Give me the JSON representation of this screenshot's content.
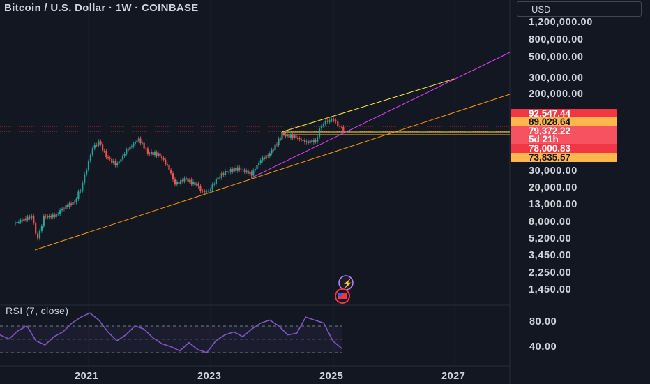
{
  "header": {
    "title": "Bitcoin / U.S. Dollar · 1W · COINBASE",
    "currency": "USD"
  },
  "price_axis": {
    "labels": [
      "1,200,000.00",
      "800,000.00",
      "500,000.00",
      "300,000.00",
      "200,000.00",
      "30,000.00",
      "20,000.00",
      "13,000.00",
      "8,000.00",
      "5,200.00",
      "3,450.00",
      "2,250.00",
      "1,450.00"
    ]
  },
  "price_tags": [
    {
      "text": "92,547.44",
      "bg": "#f23645",
      "fg": "#ffffff"
    },
    {
      "text": "89,028.64",
      "bg": "#ffb74d",
      "fg": "#131722"
    },
    {
      "text": "79,372.22",
      "bg": "#f7525f",
      "fg": "#ffffff"
    },
    {
      "text": "5d 21h",
      "bg": "#f7525f",
      "fg": "#ffffff"
    },
    {
      "text": "78,000.83",
      "bg": "#f23645",
      "fg": "#ffffff"
    },
    {
      "text": "73,835.57",
      "bg": "#ffb74d",
      "fg": "#131722"
    }
  ],
  "rsi": {
    "label": "RSI (7, close)",
    "axis": [
      "80.00",
      "40.00"
    ]
  },
  "time_axis": [
    "2021",
    "2023",
    "2025",
    "2027"
  ],
  "colors": {
    "up": "#26a69a",
    "down": "#ef5350",
    "trend_yellow": "#ffeb3b",
    "trend_orange": "#ff9800",
    "trend_magenta": "#e040fb",
    "rsi": "#7e57c2"
  },
  "chart_data": {
    "type": "candlestick",
    "scale": "log",
    "series": [
      {
        "name": "BTCUSD",
        "points": [
          [
            2019.8,
            7500
          ],
          [
            2020.0,
            8500
          ],
          [
            2020.1,
            9000
          ],
          [
            2020.2,
            5000
          ],
          [
            2020.3,
            8800
          ],
          [
            2020.5,
            9200
          ],
          [
            2020.6,
            11000
          ],
          [
            2020.8,
            13000
          ],
          [
            2020.9,
            18000
          ],
          [
            2021.0,
            30000
          ],
          [
            2021.1,
            50000
          ],
          [
            2021.2,
            58000
          ],
          [
            2021.35,
            38000
          ],
          [
            2021.5,
            33000
          ],
          [
            2021.65,
            47000
          ],
          [
            2021.85,
            63000
          ],
          [
            2022.0,
            45000
          ],
          [
            2022.2,
            42000
          ],
          [
            2022.35,
            30000
          ],
          [
            2022.45,
            20000
          ],
          [
            2022.6,
            23000
          ],
          [
            2022.8,
            20000
          ],
          [
            2022.9,
            16500
          ],
          [
            2023.0,
            17000
          ],
          [
            2023.15,
            24000
          ],
          [
            2023.3,
            28000
          ],
          [
            2023.5,
            30000
          ],
          [
            2023.7,
            26000
          ],
          [
            2023.85,
            37000
          ],
          [
            2024.0,
            43000
          ],
          [
            2024.2,
            70000
          ],
          [
            2024.4,
            66000
          ],
          [
            2024.6,
            58000
          ],
          [
            2024.75,
            60000
          ],
          [
            2024.85,
            90000
          ],
          [
            2024.95,
            100000
          ],
          [
            2025.05,
            102000
          ],
          [
            2025.15,
            84000
          ],
          [
            2025.2,
            79372
          ]
        ]
      }
    ],
    "rsi": [
      55,
      48,
      62,
      70,
      45,
      38,
      52,
      60,
      75,
      85,
      92,
      80,
      60,
      45,
      55,
      70,
      65,
      50,
      40,
      35,
      28,
      42,
      30,
      25,
      45,
      55,
      60,
      52,
      65,
      75,
      80,
      70,
      55,
      58,
      85,
      80,
      75,
      45,
      32
    ]
  }
}
